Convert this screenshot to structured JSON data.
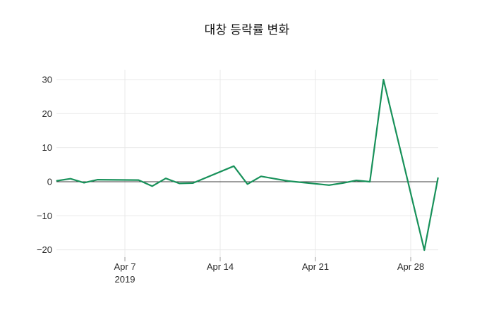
{
  "header": {
    "title": "대창 등락률 변화"
  },
  "chart_data": {
    "type": "line",
    "title": "대창 등락률 변화",
    "series_name": "등락률",
    "x_unit": "date (April 2019, trading days)",
    "points": [
      {
        "date": "Apr 2",
        "day": 2,
        "value": 0.3
      },
      {
        "date": "Apr 3",
        "day": 3,
        "value": 0.9
      },
      {
        "date": "Apr 4",
        "day": 4,
        "value": -0.3
      },
      {
        "date": "Apr 5",
        "day": 5,
        "value": 0.6
      },
      {
        "date": "Apr 8",
        "day": 8,
        "value": 0.5
      },
      {
        "date": "Apr 9",
        "day": 9,
        "value": -1.3
      },
      {
        "date": "Apr 10",
        "day": 10,
        "value": 1.0
      },
      {
        "date": "Apr 11",
        "day": 11,
        "value": -0.5
      },
      {
        "date": "Apr 12",
        "day": 12,
        "value": -0.4
      },
      {
        "date": "Apr 15",
        "day": 15,
        "value": 4.6
      },
      {
        "date": "Apr 16",
        "day": 16,
        "value": -0.7
      },
      {
        "date": "Apr 17",
        "day": 17,
        "value": 1.6
      },
      {
        "date": "Apr 18",
        "day": 18,
        "value": 0.9
      },
      {
        "date": "Apr 19",
        "day": 19,
        "value": 0.2
      },
      {
        "date": "Apr 22",
        "day": 22,
        "value": -1.0
      },
      {
        "date": "Apr 23",
        "day": 23,
        "value": -0.4
      },
      {
        "date": "Apr 24",
        "day": 24,
        "value": 0.4
      },
      {
        "date": "Apr 25",
        "day": 25,
        "value": 0.0
      },
      {
        "date": "Apr 26",
        "day": 26,
        "value": 30.0
      },
      {
        "date": "Apr 29",
        "day": 29,
        "value": -20.1
      },
      {
        "date": "Apr 30",
        "day": 30,
        "value": 1.1
      }
    ],
    "y_ticks": [
      30,
      20,
      10,
      0,
      -10,
      -20
    ],
    "x_ticks": [
      {
        "day": 7,
        "label": "Apr 7",
        "sublabel": "2019"
      },
      {
        "day": 14,
        "label": "Apr 14",
        "sublabel": ""
      },
      {
        "day": 21,
        "label": "Apr 21",
        "sublabel": ""
      },
      {
        "day": 28,
        "label": "Apr 28",
        "sublabel": ""
      }
    ],
    "ylim": [
      -23,
      33
    ],
    "grid": true,
    "legend_position": "none",
    "zero_line": true,
    "colors": {
      "line": "#18915a",
      "grid": "#e9e9e9",
      "zero_line": "#3c3c3c",
      "tick_text": "#2a2a2a",
      "tick_mark": "#999999",
      "background": "#ffffff"
    }
  }
}
